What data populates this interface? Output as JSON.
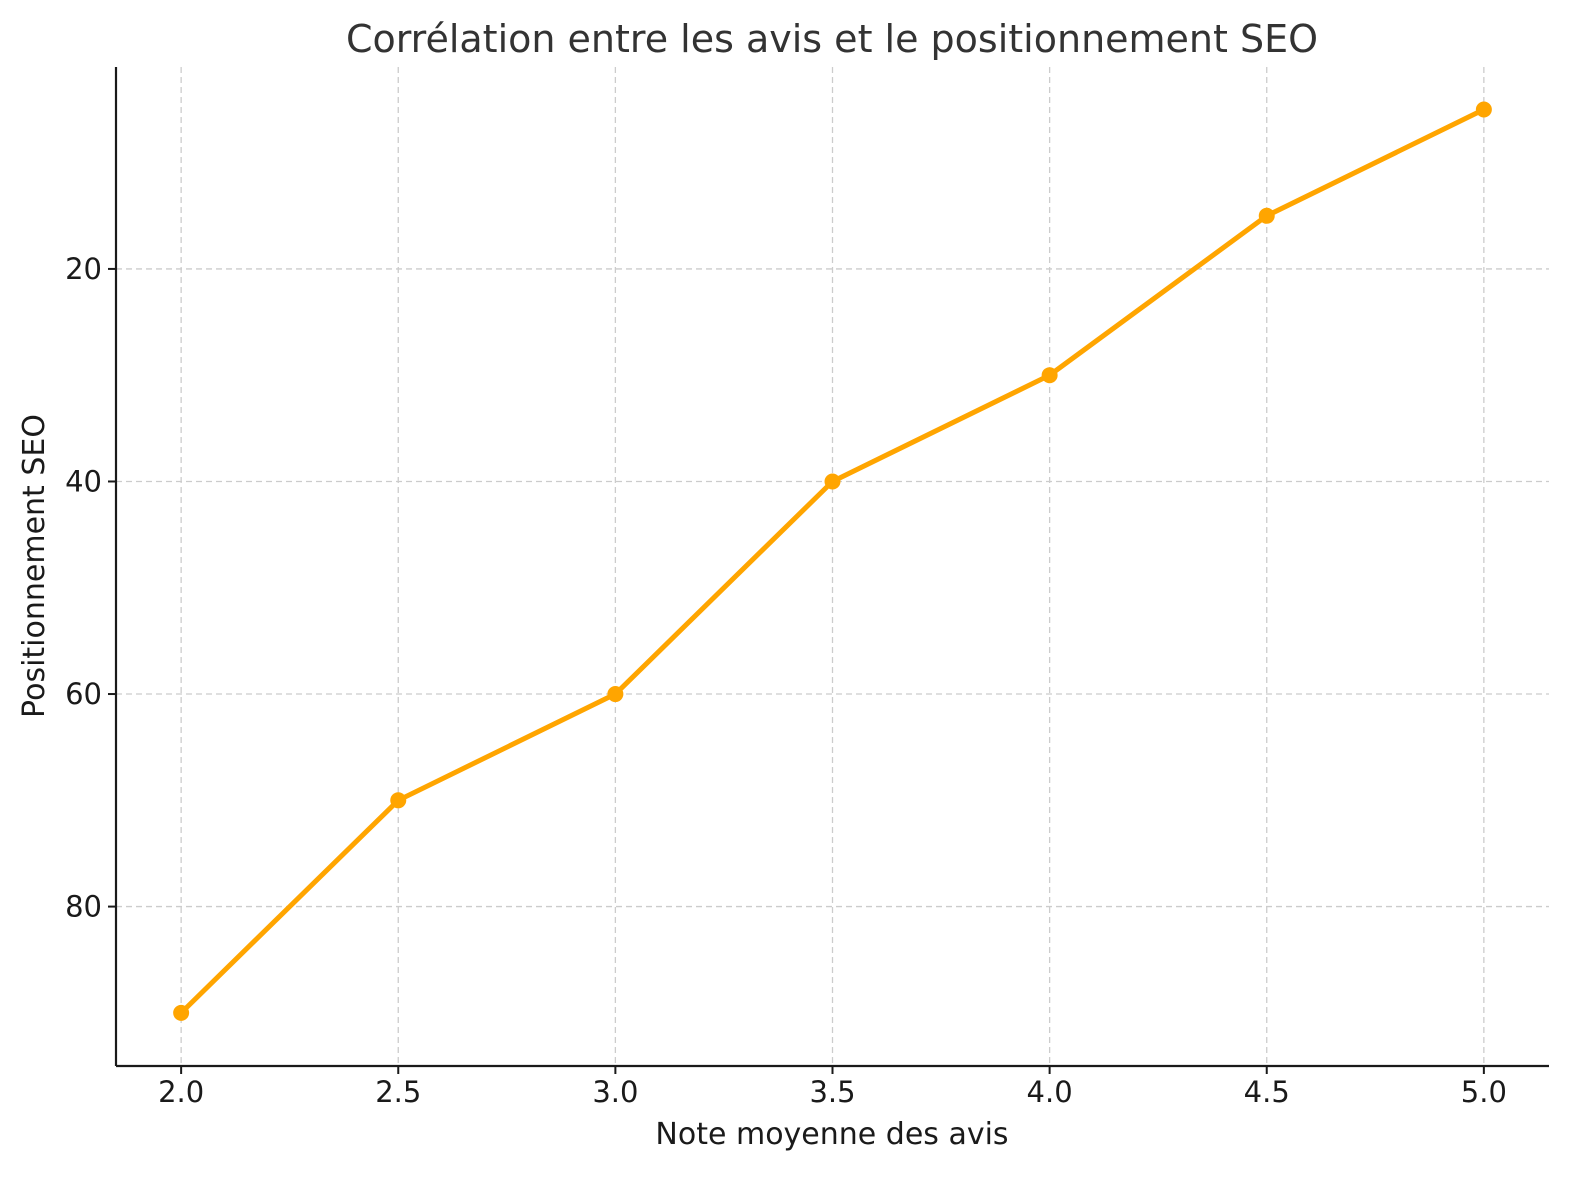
{
  "chart_data": {
    "type": "line",
    "title": "Corrélation entre les avis et le positionnement SEO",
    "xlabel": "Note moyenne des avis",
    "ylabel": "Positionnement SEO",
    "x_ticks": [
      "2.0",
      "2.5",
      "3.0",
      "3.5",
      "4.0",
      "4.5",
      "5.0"
    ],
    "y_ticks": [
      "20",
      "40",
      "60",
      "80"
    ],
    "xlim": [
      1.85,
      5.15
    ],
    "ylim": [
      95,
      1
    ],
    "y_inverted": true,
    "grid": true,
    "legend": "none",
    "series": [
      {
        "color": "#FFA500",
        "marker": "circle",
        "x": [
          2.0,
          2.5,
          3.0,
          3.5,
          4.0,
          4.5,
          5.0
        ],
        "y": [
          90,
          70,
          60,
          40,
          30,
          15,
          5
        ]
      }
    ]
  }
}
